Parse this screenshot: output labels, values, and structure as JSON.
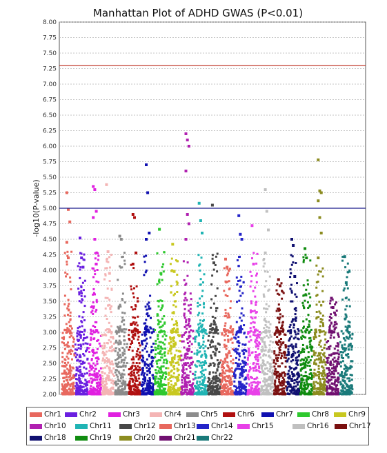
{
  "chart_data": {
    "type": "scatter",
    "title": "Manhattan Plot of ADHD GWAS (P<0.01)",
    "xlabel": "",
    "ylabel": "-log10(P-value)",
    "ylim": [
      2.0,
      8.0
    ],
    "y_ticks": [
      "2.00",
      "2.25",
      "2.50",
      "2.75",
      "3.00",
      "3.25",
      "3.50",
      "3.75",
      "4.00",
      "4.25",
      "4.50",
      "4.75",
      "5.00",
      "5.25",
      "5.50",
      "5.75",
      "6.00",
      "6.25",
      "6.50",
      "6.75",
      "7.00",
      "7.25",
      "7.50",
      "7.75",
      "8.00"
    ],
    "grid": true,
    "legend_position": "bottom",
    "reference_lines": [
      {
        "y": 7.3,
        "color": "#c0392b"
      },
      {
        "y": 5.0,
        "color": "#1a1a8c"
      }
    ],
    "series": [
      {
        "name": "Chr1",
        "color": "#e8685e",
        "max_y": 5.25,
        "peaks": [
          5.25,
          4.98,
          4.78,
          4.45,
          4.2
        ]
      },
      {
        "name": "Chr2",
        "color": "#6a1fe0",
        "max_y": 4.52,
        "peaks": [
          4.52,
          4.2,
          4.05
        ]
      },
      {
        "name": "Chr3",
        "color": "#e020e0",
        "max_y": 5.35,
        "peaks": [
          5.35,
          5.3,
          4.95,
          4.85,
          4.5,
          4.1
        ]
      },
      {
        "name": "Chr4",
        "color": "#f4b4b4",
        "max_y": 5.38,
        "peaks": [
          5.38,
          4.3,
          3.95
        ]
      },
      {
        "name": "Chr5",
        "color": "#8c8c8c",
        "max_y": 4.55,
        "peaks": [
          4.55,
          4.5
        ]
      },
      {
        "name": "Chr6",
        "color": "#b01010",
        "max_y": 4.9,
        "peaks": [
          4.9,
          4.85,
          4.28,
          4.1
        ]
      },
      {
        "name": "Chr7",
        "color": "#1010b0",
        "max_y": 5.7,
        "peaks": [
          5.7,
          5.25,
          4.6,
          4.5
        ]
      },
      {
        "name": "Chr8",
        "color": "#2ec82e",
        "max_y": 4.66,
        "peaks": [
          4.66,
          3.95
        ]
      },
      {
        "name": "Chr9",
        "color": "#c8c820",
        "max_y": 4.42,
        "peaks": [
          4.42,
          3.98
        ]
      },
      {
        "name": "Chr10",
        "color": "#b020b0",
        "max_y": 6.2,
        "peaks": [
          6.2,
          6.1,
          6.0,
          5.6,
          4.9,
          4.75,
          4.5
        ]
      },
      {
        "name": "Chr11",
        "color": "#20b4b4",
        "max_y": 5.08,
        "peaks": [
          5.08,
          4.8,
          4.6
        ]
      },
      {
        "name": "Chr12",
        "color": "#484848",
        "max_y": 5.05,
        "peaks": [
          5.05,
          4.12
        ]
      },
      {
        "name": "Chr13",
        "color": "#e8685e",
        "max_y": 4.18,
        "peaks": [
          4.18,
          4.05
        ]
      },
      {
        "name": "Chr14",
        "color": "#2424c8",
        "max_y": 4.88,
        "peaks": [
          4.88,
          4.58,
          4.5
        ]
      },
      {
        "name": "Chr15",
        "color": "#e840e8",
        "max_y": 4.72,
        "peaks": [
          4.72,
          4.1
        ]
      },
      {
        "name": "Chr16",
        "color": "#c0c0c0",
        "max_y": 5.3,
        "peaks": [
          5.3,
          4.95,
          4.65,
          4.28
        ]
      },
      {
        "name": "Chr17",
        "color": "#7a1010",
        "max_y": 3.85,
        "peaks": [
          3.85,
          3.75
        ]
      },
      {
        "name": "Chr18",
        "color": "#101070",
        "max_y": 4.5,
        "peaks": [
          4.5,
          4.4,
          3.9
        ]
      },
      {
        "name": "Chr19",
        "color": "#108c10",
        "max_y": 4.35,
        "peaks": [
          4.35,
          4.2
        ]
      },
      {
        "name": "Chr20",
        "color": "#8c8c20",
        "max_y": 5.78,
        "peaks": [
          5.78,
          5.28,
          5.25,
          5.12,
          4.85,
          4.6,
          4.2
        ]
      },
      {
        "name": "Chr21",
        "color": "#701070",
        "max_y": 3.55,
        "peaks": [
          3.55,
          3.4
        ]
      },
      {
        "name": "Chr22",
        "color": "#1a7a7a",
        "max_y": 4.22,
        "peaks": [
          4.22,
          3.8
        ]
      }
    ]
  }
}
